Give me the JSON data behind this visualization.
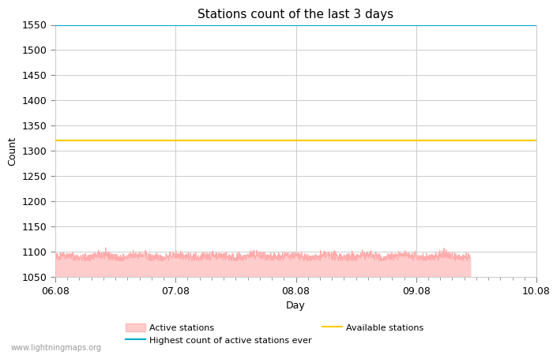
{
  "title": "Stations count of the last 3 days",
  "xlabel": "Day",
  "ylabel": "Count",
  "ylim": [
    1050,
    1550
  ],
  "yticks": [
    1050,
    1100,
    1150,
    1200,
    1250,
    1300,
    1350,
    1400,
    1450,
    1500,
    1550
  ],
  "x_start": 0.0,
  "x_end": 4.0,
  "xtick_positions": [
    0.0,
    1.0,
    2.0,
    3.0,
    4.0
  ],
  "xtick_labels": [
    "06.08",
    "07.08",
    "08.08",
    "09.08",
    "10.08"
  ],
  "active_stations_base": 1090,
  "active_stations_end": 3.45,
  "highest_count_ever": 1550,
  "available_stations": 1320,
  "fill_color": "#ffcccc",
  "fill_edge_color": "#ffaaaa",
  "highest_line_color": "#00aacc",
  "available_line_color": "#ffcc00",
  "background_color": "#ffffff",
  "grid_color": "#cccccc",
  "title_fontsize": 11,
  "axis_label_fontsize": 9,
  "tick_fontsize": 9,
  "watermark": "www.lightningmaps.org",
  "legend_entries": [
    "Active stations",
    "Highest count of active stations ever",
    "Available stations"
  ]
}
